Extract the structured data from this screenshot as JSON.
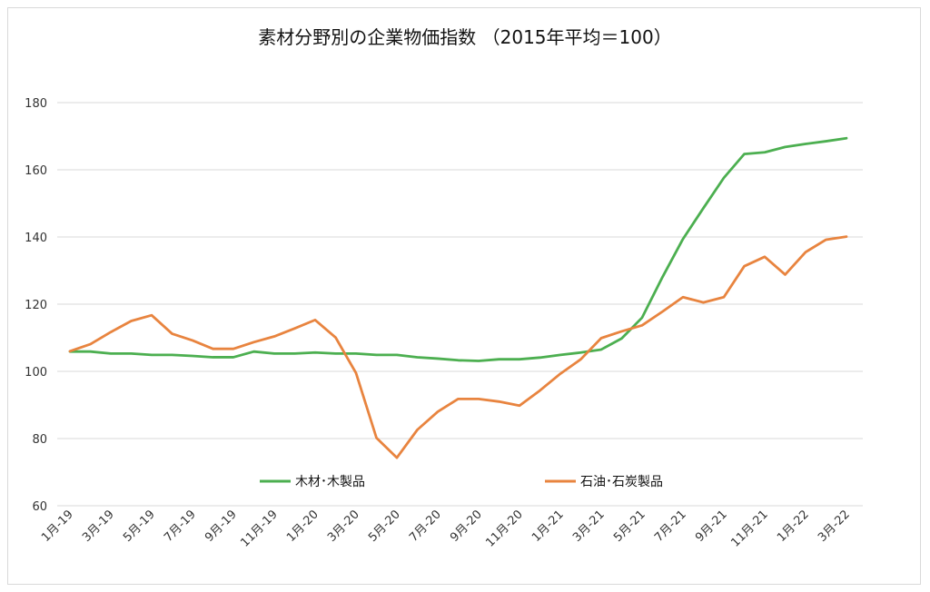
{
  "chart_data": {
    "type": "line",
    "title": "素材分野別の企業物価指数 （2015年平均＝100）",
    "xlabel": "",
    "ylabel": "",
    "ylim": [
      60,
      180
    ],
    "yticks": [
      60,
      80,
      100,
      120,
      140,
      160,
      180
    ],
    "grid": true,
    "legend_position": "bottom-inside",
    "x": [
      "1月-19",
      "2月-19",
      "3月-19",
      "4月-19",
      "5月-19",
      "6月-19",
      "7月-19",
      "8月-19",
      "9月-19",
      "10月-19",
      "11月-19",
      "12月-19",
      "1月-20",
      "2月-20",
      "3月-20",
      "4月-20",
      "5月-20",
      "6月-20",
      "7月-20",
      "8月-20",
      "9月-20",
      "10月-20",
      "11月-20",
      "12月-20",
      "1月-21",
      "2月-21",
      "3月-21",
      "4月-21",
      "5月-21",
      "6月-21",
      "7月-21",
      "8月-21",
      "9月-21",
      "10月-21",
      "11月-21",
      "12月-21",
      "1月-22",
      "2月-22",
      "3月-22"
    ],
    "xtick_labels": [
      "1月-19",
      "3月-19",
      "5月-19",
      "7月-19",
      "9月-19",
      "11月-19",
      "1月-20",
      "3月-20",
      "5月-20",
      "7月-20",
      "9月-20",
      "11月-20",
      "1月-21",
      "3月-21",
      "5月-21",
      "7月-21",
      "9月-21",
      "11月-21",
      "1月-22",
      "3月-22"
    ],
    "series": [
      {
        "name": "木材･木製品",
        "color": "#4caf50",
        "values": [
          105.9,
          105.9,
          105.3,
          105.3,
          104.9,
          104.9,
          104.6,
          104.2,
          104.2,
          105.9,
          105.3,
          105.3,
          105.6,
          105.3,
          105.3,
          104.9,
          104.9,
          104.2,
          103.8,
          103.3,
          103.1,
          103.6,
          103.6,
          104.1,
          104.9,
          105.6,
          106.5,
          109.8,
          116.0,
          128.1,
          139.4,
          148.6,
          157.6,
          164.7,
          165.2,
          166.8,
          167.7,
          168.5,
          169.4
        ]
      },
      {
        "name": "石油･石炭製品",
        "color": "#e8843f",
        "values": [
          106.0,
          108.1,
          111.7,
          115.0,
          116.7,
          111.2,
          109.2,
          106.7,
          106.7,
          108.7,
          110.4,
          112.8,
          115.3,
          110.1,
          99.5,
          80.2,
          74.3,
          82.6,
          88.0,
          91.8,
          91.8,
          91.0,
          89.8,
          94.3,
          99.3,
          103.6,
          109.9,
          111.9,
          113.7,
          117.8,
          122.1,
          120.5,
          122.1,
          131.3,
          134.1,
          128.8,
          135.5,
          139.2,
          140.1
        ]
      }
    ]
  }
}
